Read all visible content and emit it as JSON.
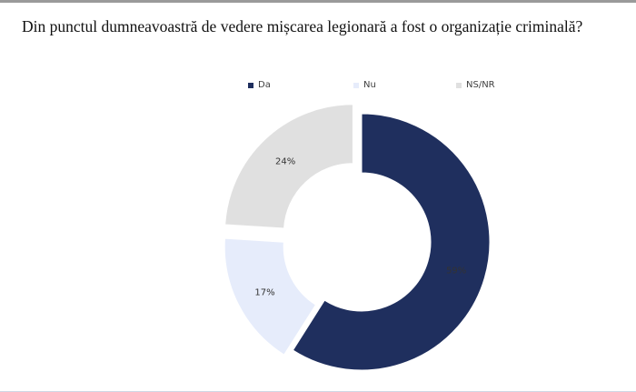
{
  "title": "Din punctul dumneavoastră de vedere mișcarea legionară a fost o organizație criminală?",
  "chart_data": {
    "type": "pie",
    "donut": true,
    "title": "Din punctul dumneavoastră de vedere mișcarea legionară a fost o organizație criminală?",
    "legend_placement": "top",
    "categories": [
      "Da",
      "Nu",
      "NS/NR"
    ],
    "values": [
      59,
      17,
      24
    ],
    "labels": [
      "59%",
      "17%",
      "24%"
    ],
    "colors": [
      "#1f2f5e",
      "#e6ecfb",
      "#e0e0e0"
    ],
    "exploded": true
  }
}
